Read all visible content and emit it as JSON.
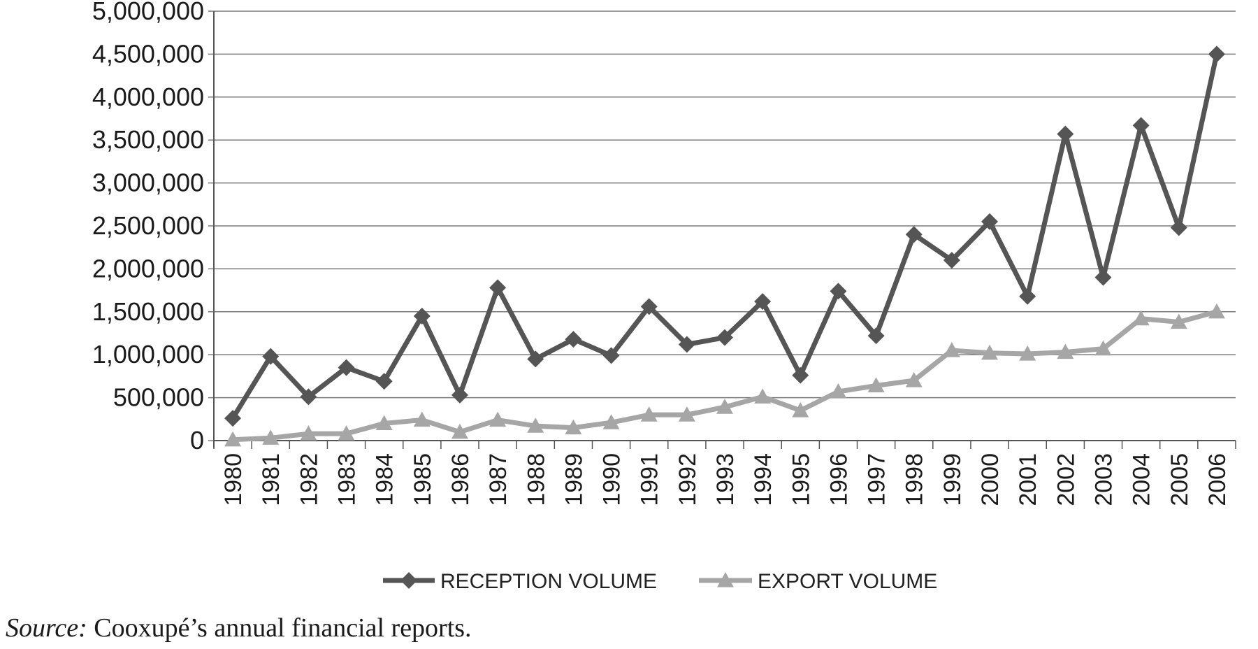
{
  "chart_data": {
    "type": "line",
    "x": [
      1980,
      1981,
      1982,
      1983,
      1984,
      1985,
      1986,
      1987,
      1988,
      1989,
      1990,
      1991,
      1992,
      1993,
      1994,
      1995,
      1996,
      1997,
      1998,
      1999,
      2000,
      2001,
      2002,
      2003,
      2004,
      2005,
      2006
    ],
    "x_tick_labels": [
      "1980",
      "1981",
      "1982",
      "1983",
      "1984",
      "1985",
      "1986",
      "1987",
      "1988",
      "1989",
      "1990",
      "1991",
      "1992",
      "1993",
      "1994",
      "1995",
      "1996",
      "1997",
      "1998",
      "1999",
      "2000",
      "2001",
      "2002",
      "2003",
      "2004",
      "2005",
      "2006"
    ],
    "series": [
      {
        "name": "RECEPTION VOLUME",
        "marker": "diamond",
        "color": "#555555",
        "values": [
          260000,
          980000,
          510000,
          850000,
          690000,
          1450000,
          530000,
          1780000,
          950000,
          1180000,
          990000,
          1560000,
          1120000,
          1200000,
          1620000,
          760000,
          1740000,
          1220000,
          2400000,
          2100000,
          2550000,
          1680000,
          3570000,
          1900000,
          3670000,
          2480000,
          4500000
        ]
      },
      {
        "name": "EXPORT VOLUME",
        "marker": "triangle",
        "color": "#a6a6a6",
        "values": [
          10000,
          30000,
          80000,
          80000,
          200000,
          240000,
          100000,
          240000,
          170000,
          150000,
          210000,
          300000,
          300000,
          390000,
          510000,
          350000,
          570000,
          640000,
          700000,
          1050000,
          1020000,
          1010000,
          1030000,
          1070000,
          1420000,
          1380000,
          1500000
        ]
      }
    ],
    "ylim": [
      0,
      5000000
    ],
    "y_ticks": [
      0,
      500000,
      1000000,
      1500000,
      2000000,
      2500000,
      3000000,
      3500000,
      4000000,
      4500000,
      5000000
    ],
    "y_tick_labels": [
      "0",
      "500,000",
      "1,000,000",
      "1,500,000",
      "2,000,000",
      "2,500,000",
      "3,000,000",
      "3,500,000",
      "4,000,000",
      "4,500,000",
      "5,000,000"
    ],
    "grid": true,
    "legend_position": "bottom"
  },
  "source": {
    "label": "Source:",
    "text": " Cooxupé’s annual financial reports."
  }
}
